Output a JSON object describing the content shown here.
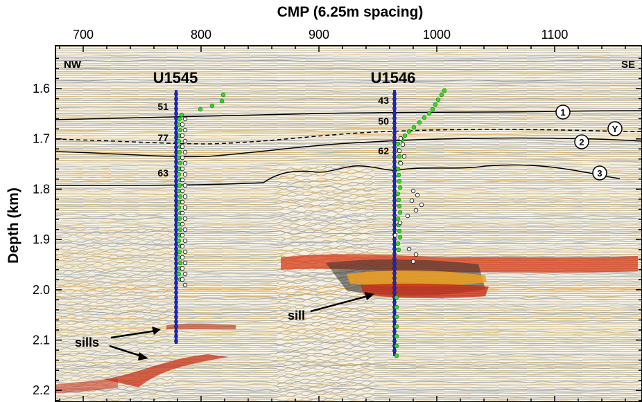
{
  "figure": {
    "x_axis_title": "CMP (6.25m spacing)",
    "y_axis_title": "Depth (km)",
    "x_ticks": [
      "700",
      "800",
      "900",
      "1000",
      "1100"
    ],
    "y_ticks": [
      "1.6",
      "1.7",
      "1.8",
      "1.9",
      "2.0",
      "2.1",
      "2.2"
    ],
    "left_direction": "NW",
    "right_direction": "SE"
  },
  "sites": [
    {
      "name": "U1545",
      "cmp": 780,
      "values": [
        "51",
        "77",
        "63"
      ]
    },
    {
      "name": "U1546",
      "cmp": 962,
      "values": [
        "43",
        "50",
        "62"
      ]
    }
  ],
  "horizons": [
    "1",
    "Y",
    "2",
    "3"
  ],
  "annotations": {
    "sills_label": "sills",
    "sill_label": "sill"
  },
  "colors": {
    "borehole": "#1a2ad8",
    "green_points": "#33dd22",
    "seismic_positive": "#d02010",
    "seismic_orange": "#f2a020",
    "seismic_negative": "#404040",
    "background": "#ffffff"
  }
}
